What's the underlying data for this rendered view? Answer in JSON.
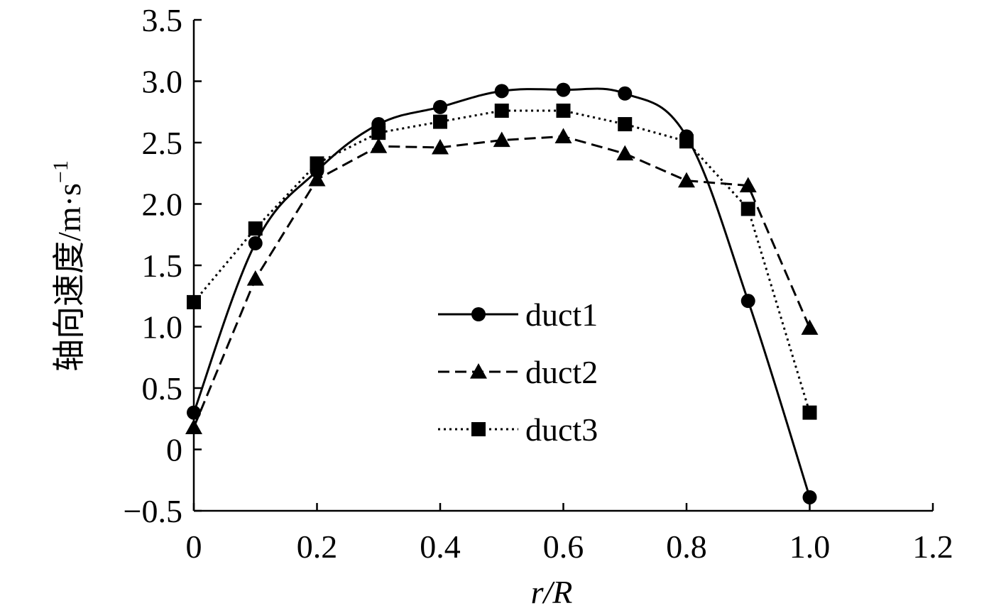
{
  "chart_data": {
    "type": "line",
    "xlabel": "r/R",
    "ylabel_main": "轴向速度/m·s",
    "ylabel_sup": "−1",
    "xlim": [
      0,
      1.2
    ],
    "ylim": [
      -0.5,
      3.5
    ],
    "x_ticks": [
      "0",
      "0.2",
      "0.4",
      "0.6",
      "0.8",
      "1.0",
      "1.2"
    ],
    "y_ticks": [
      "−0.5",
      "0",
      "0.5",
      "1.0",
      "1.5",
      "2.0",
      "2.5",
      "3.0",
      "3.5"
    ],
    "x": [
      0,
      0.1,
      0.2,
      0.3,
      0.4,
      0.5,
      0.6,
      0.7,
      0.8,
      0.9,
      1.0
    ],
    "series": [
      {
        "name": "duct1",
        "marker": "circle",
        "line": "solid",
        "smooth": true,
        "values": [
          0.3,
          1.68,
          2.27,
          2.65,
          2.79,
          2.92,
          2.93,
          2.9,
          2.55,
          1.21,
          -0.39
        ]
      },
      {
        "name": "duct2",
        "marker": "triangle",
        "line": "dashed",
        "smooth": false,
        "values": [
          0.18,
          1.39,
          2.2,
          2.47,
          2.46,
          2.52,
          2.55,
          2.41,
          2.19,
          2.15,
          0.99
        ]
      },
      {
        "name": "duct3",
        "marker": "square",
        "line": "dotted",
        "smooth": false,
        "values": [
          1.2,
          1.8,
          2.33,
          2.58,
          2.67,
          2.76,
          2.76,
          2.65,
          2.51,
          1.96,
          0.3
        ]
      }
    ],
    "legend_position": "center"
  }
}
